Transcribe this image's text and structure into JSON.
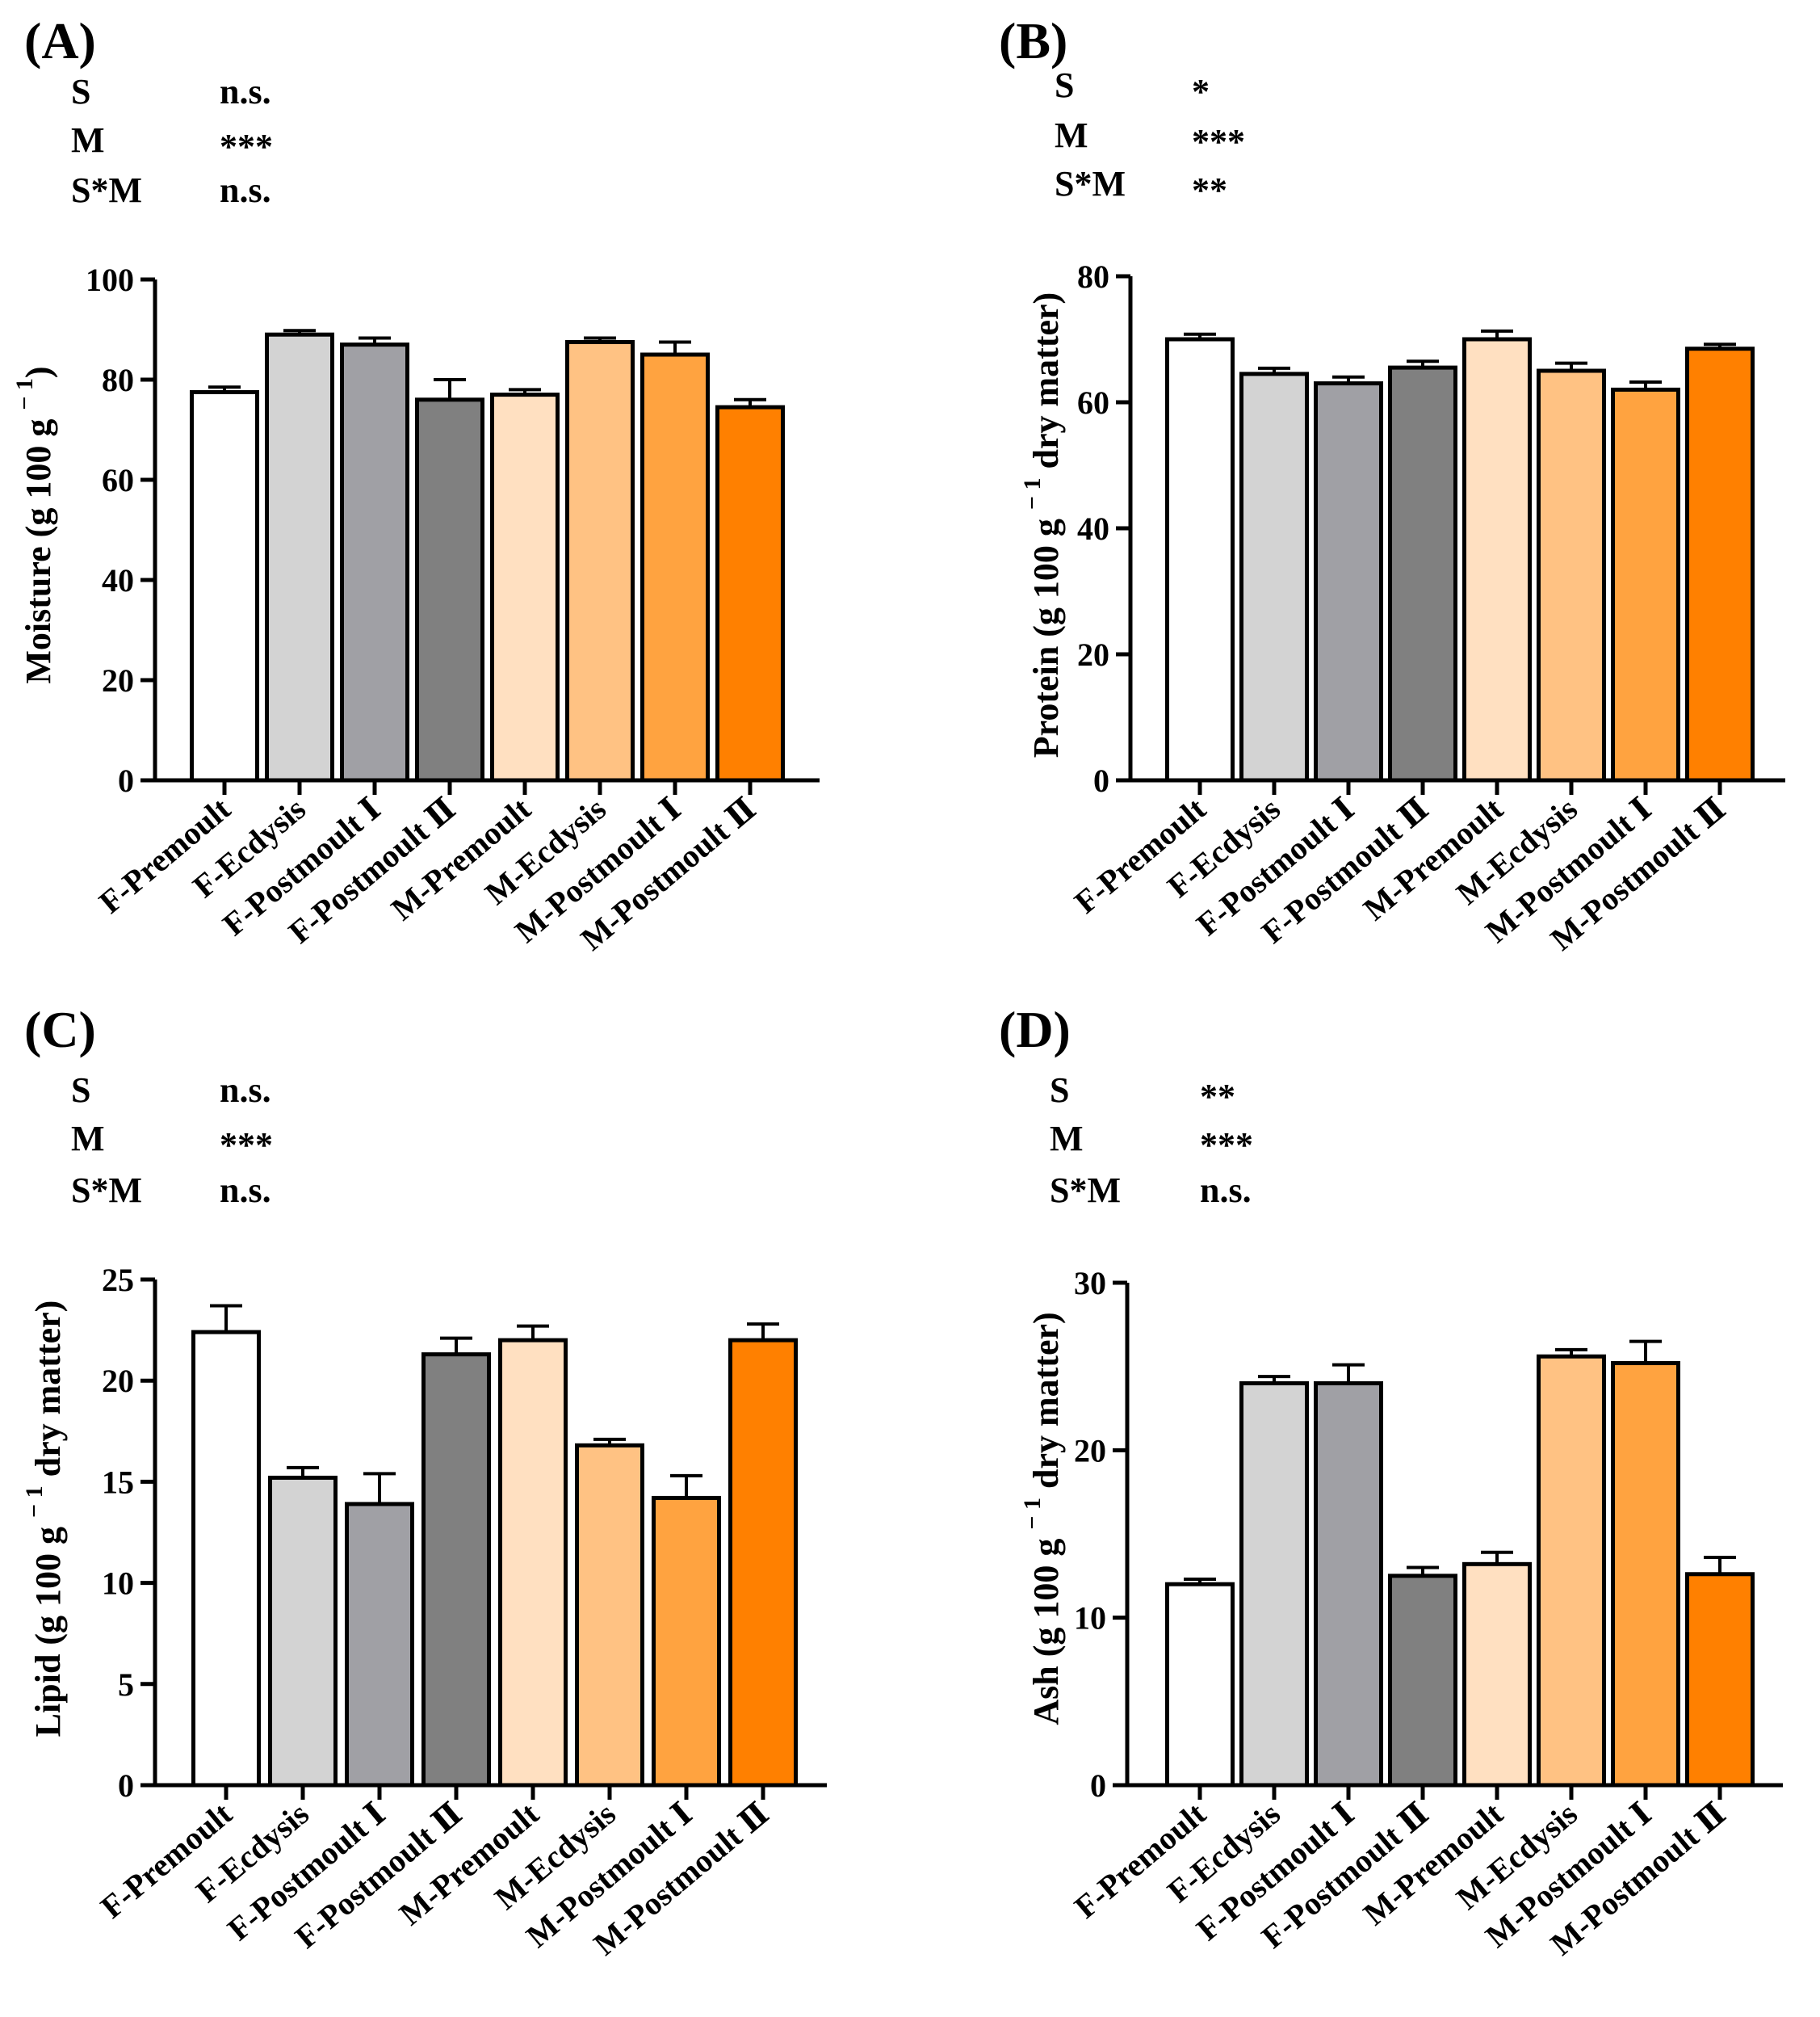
{
  "chart_data": [
    {
      "type": "bar",
      "panel": "(A)",
      "stats": [
        {
          "factor": "S",
          "value": "n.s."
        },
        {
          "factor": "M",
          "value": "***"
        },
        {
          "factor": "S*M",
          "value": "n.s."
        }
      ],
      "ylabel_main": "Moisture (g 100 g",
      "ylabel_sup": "− 1",
      "ylabel_tail": ")",
      "ylim": [
        0,
        100
      ],
      "yticks": [
        0,
        20,
        40,
        60,
        80,
        100
      ],
      "categories": [
        "F-Premoult",
        "F-Ecdysis",
        "F-Postmoult Ⅰ",
        "F-Postmoult Ⅱ",
        "M-Premoult",
        "M-Ecdysis",
        "M-Postmoult Ⅰ",
        "M-Postmoult Ⅱ"
      ],
      "values": [
        77.5,
        89,
        87,
        76,
        77,
        87.5,
        85,
        74.5
      ],
      "errors": [
        1,
        0.8,
        1.3,
        4,
        1,
        0.8,
        2.5,
        1.5
      ]
    },
    {
      "type": "bar",
      "panel": "(B)",
      "stats": [
        {
          "factor": "S",
          "value": "*"
        },
        {
          "factor": "M",
          "value": "***"
        },
        {
          "factor": "S*M",
          "value": "**"
        }
      ],
      "ylabel_main": "Protein (g 100 g",
      "ylabel_sup": "− 1",
      "ylabel_tail": " dry matter)",
      "ylim": [
        0,
        80
      ],
      "yticks": [
        0,
        20,
        40,
        60,
        80
      ],
      "categories": [
        "F-Premoult",
        "F-Ecdysis",
        "F-Postmoult Ⅰ",
        "F-Postmoult Ⅱ",
        "M-Premoult",
        "M-Ecdysis",
        "M-Postmoult Ⅰ",
        "M-Postmoult Ⅱ"
      ],
      "values": [
        70,
        64.5,
        63,
        65.5,
        70,
        65,
        62,
        68.5
      ],
      "errors": [
        0.8,
        0.9,
        1,
        1,
        1.3,
        1.2,
        1.2,
        0.7
      ]
    },
    {
      "type": "bar",
      "panel": "(C)",
      "stats": [
        {
          "factor": "S",
          "value": "n.s."
        },
        {
          "factor": "M",
          "value": "***"
        },
        {
          "factor": "S*M",
          "value": "n.s."
        }
      ],
      "ylabel_main": "Lipid (g 100 g",
      "ylabel_sup": "− 1",
      "ylabel_tail": " dry matter)",
      "ylim": [
        0,
        25
      ],
      "yticks": [
        0,
        5,
        10,
        15,
        20,
        25
      ],
      "categories": [
        "F-Premoult",
        "F-Ecdysis",
        "F-Postmoult Ⅰ",
        "F-Postmoult Ⅱ",
        "M-Premoult",
        "M-Ecdysis",
        "M-Postmoult Ⅰ",
        "M-Postmoult Ⅱ"
      ],
      "values": [
        22.4,
        15.2,
        13.9,
        21.3,
        22,
        16.8,
        14.2,
        22
      ],
      "errors": [
        1.3,
        0.5,
        1.5,
        0.8,
        0.7,
        0.3,
        1.1,
        0.8
      ]
    },
    {
      "type": "bar",
      "panel": "(D)",
      "stats": [
        {
          "factor": "S",
          "value": "**"
        },
        {
          "factor": "M",
          "value": "***"
        },
        {
          "factor": "S*M",
          "value": "n.s."
        }
      ],
      "ylabel_main": "Ash (g 100 g",
      "ylabel_sup": "− 1",
      "ylabel_tail": " dry matter)",
      "ylim": [
        0,
        30
      ],
      "yticks": [
        0,
        10,
        20,
        30
      ],
      "categories": [
        "F-Premoult",
        "F-Ecdysis",
        "F-Postmoult Ⅰ",
        "F-Postmoult Ⅱ",
        "M-Premoult",
        "M-Ecdysis",
        "M-Postmoult Ⅰ",
        "M-Postmoult Ⅱ"
      ],
      "values": [
        12,
        24,
        24,
        12.5,
        13.2,
        25.6,
        25.2,
        12.6
      ],
      "errors": [
        0.3,
        0.4,
        1.1,
        0.5,
        0.7,
        0.4,
        1.3,
        1
      ]
    }
  ],
  "bar_colors": [
    "#ffffff",
    "#d3d3d3",
    "#a0a0a5",
    "#808080",
    "#ffe0c1",
    "#ffc283",
    "#ffa340",
    "#ff8000"
  ]
}
